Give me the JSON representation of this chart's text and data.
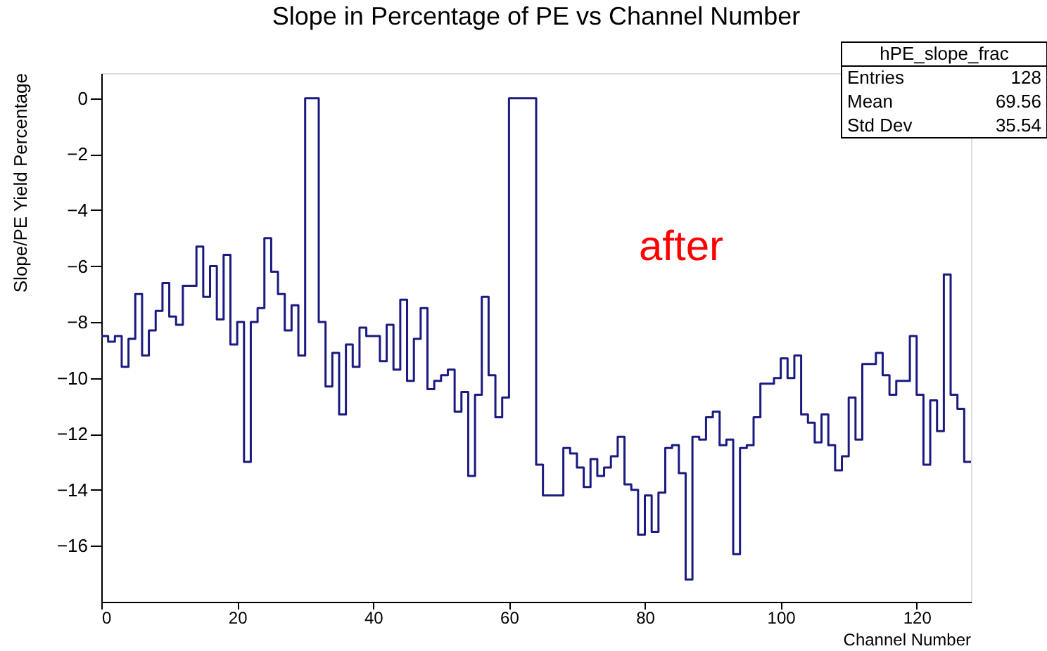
{
  "chart_data": {
    "type": "histogram",
    "title": "Slope in Percentage of PE vs Channel Number",
    "xlabel": "Channel Number",
    "ylabel": "Slope/PE Yield Percentage",
    "bins": [
      0,
      1,
      2,
      3,
      4,
      5,
      6,
      7,
      8,
      9,
      10,
      11,
      12,
      13,
      14,
      15,
      16,
      17,
      18,
      19,
      20,
      21,
      22,
      23,
      24,
      25,
      26,
      27,
      28,
      29,
      30,
      31,
      32,
      33,
      34,
      35,
      36,
      37,
      38,
      39,
      40,
      41,
      42,
      43,
      44,
      45,
      46,
      47,
      48,
      49,
      50,
      51,
      52,
      53,
      54,
      55,
      56,
      57,
      58,
      59,
      60,
      61,
      62,
      63,
      64,
      65,
      66,
      67,
      68,
      69,
      70,
      71,
      72,
      73,
      74,
      75,
      76,
      77,
      78,
      79,
      80,
      81,
      82,
      83,
      84,
      85,
      86,
      87,
      88,
      89,
      90,
      91,
      92,
      93,
      94,
      95,
      96,
      97,
      98,
      99,
      100,
      101,
      102,
      103,
      104,
      105,
      106,
      107,
      108,
      109,
      110,
      111,
      112,
      113,
      114,
      115,
      116,
      117,
      118,
      119,
      120,
      121,
      122,
      123,
      124,
      125,
      126,
      127,
      128
    ],
    "values": [
      -8.5,
      -8.7,
      -8.5,
      -9.6,
      -8.6,
      -7.0,
      -9.2,
      -8.3,
      -7.6,
      -6.6,
      -7.8,
      -8.1,
      -6.7,
      -6.7,
      -5.3,
      -7.1,
      -6.0,
      -7.9,
      -5.6,
      -8.8,
      -8.0,
      -13.0,
      -8.0,
      -7.5,
      -5.0,
      -6.2,
      -7.0,
      -8.3,
      -7.4,
      -9.2,
      0,
      0,
      -8.0,
      -10.3,
      -9.1,
      -11.3,
      -8.8,
      -9.6,
      -8.2,
      -8.5,
      -8.5,
      -9.4,
      -8.1,
      -9.7,
      -7.2,
      -10.1,
      -8.6,
      -7.5,
      -10.4,
      -10.1,
      -9.9,
      -9.7,
      -11.2,
      -10.5,
      -13.5,
      -10.6,
      -7.1,
      -9.9,
      -11.4,
      -10.7,
      0,
      0,
      0,
      0,
      -13.1,
      -14.2,
      -14.2,
      -14.2,
      -12.5,
      -12.7,
      -13.2,
      -13.9,
      -12.9,
      -13.5,
      -13.2,
      -12.8,
      -12.1,
      -13.8,
      -14.0,
      -15.6,
      -14.2,
      -15.5,
      -14.1,
      -12.5,
      -12.4,
      -13.4,
      -17.2,
      -12.1,
      -12.2,
      -11.4,
      -11.2,
      -12.4,
      -12.2,
      -16.3,
      -12.5,
      -12.4,
      -11.4,
      -10.2,
      -10.2,
      -10.0,
      -9.3,
      -10.0,
      -9.2,
      -11.3,
      -11.6,
      -12.3,
      -11.3,
      -12.4,
      -13.3,
      -12.8,
      -10.7,
      -12.2,
      -9.5,
      -9.5,
      -9.1,
      -9.9,
      -10.6,
      -10.1,
      -10.1,
      -8.5,
      -10.6,
      -13.1,
      -10.8,
      -11.9,
      -6.3,
      -10.6,
      -11.1,
      -13.0
    ],
    "color": "#1a1a80",
    "xlim": [
      0,
      128
    ],
    "xticks": [
      0,
      20,
      40,
      60,
      80,
      100,
      120
    ],
    "ylim": [
      -18,
      0.9
    ],
    "yticks": [
      0,
      -2,
      -4,
      -6,
      -8,
      -10,
      -12,
      -14,
      -16
    ],
    "grid": false,
    "annotations": [
      "hPE_slope_frac",
      "Entries",
      "128",
      "Mean",
      "69.56",
      "Std Dev",
      "35.54",
      "after"
    ]
  }
}
